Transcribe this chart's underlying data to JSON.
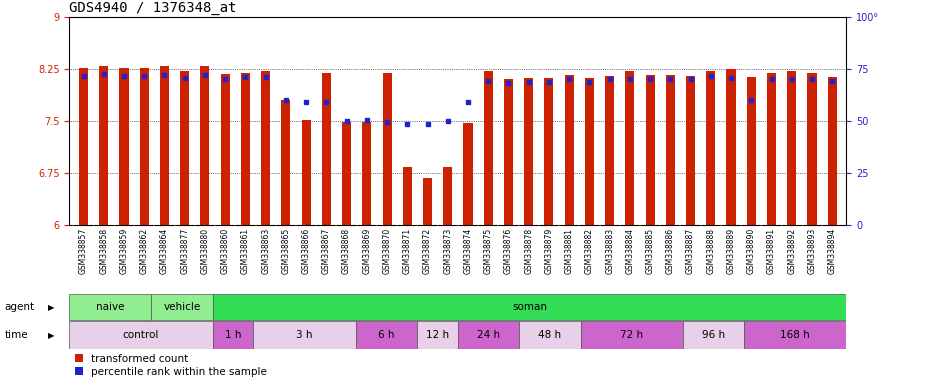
{
  "title": "GDS4940 / 1376348_at",
  "samples": [
    "GSM338857",
    "GSM338858",
    "GSM338859",
    "GSM338862",
    "GSM338864",
    "GSM338877",
    "GSM338880",
    "GSM338860",
    "GSM338861",
    "GSM338863",
    "GSM338865",
    "GSM338866",
    "GSM338867",
    "GSM338868",
    "GSM338869",
    "GSM338870",
    "GSM338871",
    "GSM338872",
    "GSM338873",
    "GSM338874",
    "GSM338875",
    "GSM338876",
    "GSM338878",
    "GSM338879",
    "GSM338881",
    "GSM338882",
    "GSM338883",
    "GSM338884",
    "GSM338885",
    "GSM338886",
    "GSM338887",
    "GSM338888",
    "GSM338889",
    "GSM338890",
    "GSM338891",
    "GSM338892",
    "GSM338893",
    "GSM338894"
  ],
  "red_values": [
    8.27,
    8.3,
    8.26,
    8.26,
    8.3,
    8.22,
    8.3,
    8.18,
    8.19,
    8.22,
    7.8,
    7.52,
    8.19,
    7.48,
    7.48,
    8.19,
    6.83,
    6.67,
    6.83,
    7.47,
    8.22,
    8.1,
    8.12,
    8.12,
    8.17,
    8.12,
    8.15,
    8.22,
    8.16,
    8.17,
    8.15,
    8.23,
    8.25,
    8.13,
    8.2,
    8.22,
    8.2,
    8.13
  ],
  "blue_values": [
    8.15,
    8.18,
    8.15,
    8.15,
    8.16,
    8.12,
    8.16,
    8.1,
    8.14,
    8.13,
    7.8,
    7.78,
    7.78,
    7.5,
    7.52,
    7.48,
    7.46,
    7.45,
    7.5,
    7.78,
    8.08,
    8.05,
    8.07,
    8.07,
    8.1,
    8.07,
    8.1,
    8.1,
    8.1,
    8.1,
    8.1,
    8.15,
    8.12,
    7.8,
    8.1,
    8.1,
    8.1,
    8.08
  ],
  "ymin": 6.0,
  "ymax": 9.0,
  "yticks_left": [
    6.0,
    6.75,
    7.5,
    8.25,
    9.0
  ],
  "yticks_right": [
    0,
    25,
    50,
    75,
    100
  ],
  "time_groups": [
    {
      "label": "control",
      "start": 0,
      "end": 7,
      "color": "#E8D0E8"
    },
    {
      "label": "1 h",
      "start": 7,
      "end": 9,
      "color": "#CC66CC"
    },
    {
      "label": "3 h",
      "start": 9,
      "end": 14,
      "color": "#E8D0E8"
    },
    {
      "label": "6 h",
      "start": 14,
      "end": 17,
      "color": "#CC66CC"
    },
    {
      "label": "12 h",
      "start": 17,
      "end": 19,
      "color": "#E8D0E8"
    },
    {
      "label": "24 h",
      "start": 19,
      "end": 22,
      "color": "#CC66CC"
    },
    {
      "label": "48 h",
      "start": 22,
      "end": 25,
      "color": "#E8D0E8"
    },
    {
      "label": "72 h",
      "start": 25,
      "end": 30,
      "color": "#CC66CC"
    },
    {
      "label": "96 h",
      "start": 30,
      "end": 33,
      "color": "#E8D0E8"
    },
    {
      "label": "168 h",
      "start": 33,
      "end": 38,
      "color": "#CC66CC"
    }
  ],
  "bar_color": "#CC2200",
  "blue_color": "#2222CC",
  "bg_color": "#FFFFFF",
  "label_color_left": "#CC2200",
  "label_color_right": "#2222CC",
  "title_fontsize": 10,
  "tick_fontsize": 7,
  "xtick_fontsize": 5.5,
  "bar_width": 0.45
}
